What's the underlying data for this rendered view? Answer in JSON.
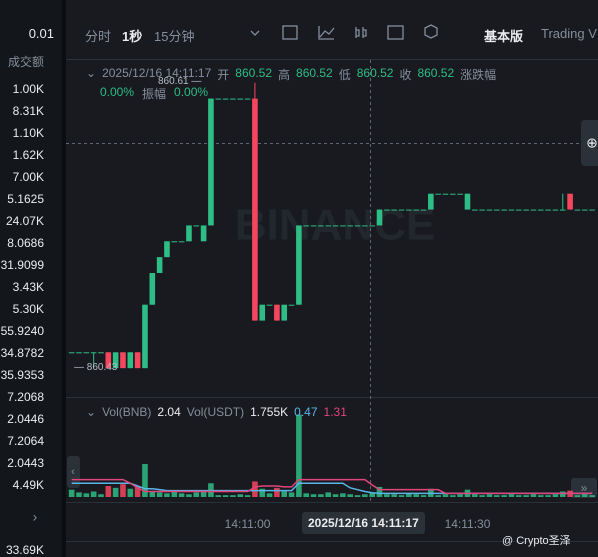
{
  "left_panel": {
    "header": "0.01",
    "column": "成交额",
    "rows": [
      "1.00K",
      "8.31K",
      "1.10K",
      "1.62K",
      "7.00K",
      "5.1625",
      "24.07K",
      "8.0686",
      "31.9099",
      "3.43K",
      "5.30K",
      "55.9240",
      "34.8782",
      "35.9353",
      "7.2068",
      "2.0446",
      "7.2064",
      "2.0443",
      "4.49K"
    ],
    "footer": "33.69K"
  },
  "toolbar": {
    "intervals": [
      "分时",
      "1秒",
      "15分钟"
    ],
    "views": [
      "基本版",
      "Trading V"
    ]
  },
  "legend": {
    "time": "2025/12/16 14:11:17",
    "open_label": "开",
    "open": "860.52",
    "high_label": "高",
    "high": "860.52",
    "low_label": "低",
    "low": "860.52",
    "close_label": "收",
    "close": "860.52",
    "change_label": "涨跌幅",
    "change": "0.00%",
    "amplitude_label": "振幅",
    "amplitude": "0.00%"
  },
  "watermark": "BINANCE",
  "chart_data": {
    "type": "candlestick",
    "max_label": "860.61",
    "min_label": "860.43",
    "ylim": [
      860.42,
      860.63
    ],
    "up_color": "#2ebd85",
    "down_color": "#f6465d",
    "categories": [
      null,
      null,
      null,
      null,
      null,
      null,
      null,
      null,
      null,
      null,
      null,
      null,
      null,
      null,
      null,
      null,
      null,
      null,
      null,
      null,
      null,
      null,
      null,
      null,
      "14:11:00",
      null,
      null,
      null,
      null,
      null,
      null,
      null,
      null,
      null,
      null,
      null,
      null,
      null,
      null,
      null,
      null,
      null,
      null,
      null,
      null,
      null,
      null,
      null,
      null,
      null,
      null,
      null,
      null,
      null,
      "14:11:30",
      null,
      null,
      null,
      null,
      null,
      null,
      null,
      null,
      null,
      null,
      null,
      null,
      null,
      null,
      null,
      null,
      null
    ],
    "crosshair_time": "2025/12/16 14:11:17",
    "candles": [
      [
        860.44,
        860.44,
        860.44,
        860.44
      ],
      [
        860.44,
        860.44,
        860.44,
        860.44
      ],
      [
        860.44,
        860.44,
        860.44,
        860.44
      ],
      [
        860.44,
        860.44,
        860.43,
        860.44
      ],
      [
        860.44,
        860.44,
        860.44,
        860.44
      ],
      [
        860.44,
        860.44,
        860.43,
        860.43
      ],
      [
        860.43,
        860.44,
        860.43,
        860.44
      ],
      [
        860.44,
        860.44,
        860.43,
        860.43
      ],
      [
        860.43,
        860.44,
        860.43,
        860.44
      ],
      [
        860.44,
        860.44,
        860.43,
        860.43
      ],
      [
        860.43,
        860.47,
        860.43,
        860.47
      ],
      [
        860.47,
        860.49,
        860.47,
        860.49
      ],
      [
        860.49,
        860.5,
        860.49,
        860.5
      ],
      [
        860.5,
        860.51,
        860.5,
        860.51
      ],
      [
        860.51,
        860.51,
        860.51,
        860.51
      ],
      [
        860.51,
        860.51,
        860.51,
        860.51
      ],
      [
        860.51,
        860.52,
        860.51,
        860.52
      ],
      [
        860.52,
        860.52,
        860.52,
        860.52
      ],
      [
        860.51,
        860.52,
        860.51,
        860.52
      ],
      [
        860.52,
        860.6,
        860.52,
        860.6
      ],
      [
        860.6,
        860.6,
        860.6,
        860.6
      ],
      [
        860.6,
        860.6,
        860.6,
        860.6
      ],
      [
        860.6,
        860.6,
        860.6,
        860.6
      ],
      [
        860.6,
        860.6,
        860.6,
        860.6
      ],
      [
        860.6,
        860.6,
        860.6,
        860.6
      ],
      [
        860.6,
        860.61,
        860.46,
        860.46
      ],
      [
        860.46,
        860.47,
        860.46,
        860.47
      ],
      [
        860.47,
        860.47,
        860.47,
        860.47
      ],
      [
        860.47,
        860.47,
        860.46,
        860.46
      ],
      [
        860.46,
        860.47,
        860.46,
        860.47
      ],
      [
        860.47,
        860.47,
        860.47,
        860.47
      ],
      [
        860.47,
        860.52,
        860.47,
        860.52
      ],
      [
        860.52,
        860.52,
        860.52,
        860.52
      ],
      [
        860.52,
        860.52,
        860.52,
        860.52
      ],
      [
        860.52,
        860.52,
        860.52,
        860.52
      ],
      [
        860.52,
        860.52,
        860.52,
        860.52
      ],
      [
        860.52,
        860.52,
        860.52,
        860.52
      ],
      [
        860.52,
        860.52,
        860.52,
        860.52
      ],
      [
        860.52,
        860.52,
        860.52,
        860.52
      ],
      [
        860.52,
        860.52,
        860.52,
        860.52
      ],
      [
        860.52,
        860.52,
        860.52,
        860.52
      ],
      [
        860.52,
        860.52,
        860.52,
        860.52
      ],
      [
        860.52,
        860.53,
        860.52,
        860.53
      ],
      [
        860.53,
        860.53,
        860.53,
        860.53
      ],
      [
        860.53,
        860.53,
        860.53,
        860.53
      ],
      [
        860.53,
        860.53,
        860.53,
        860.53
      ],
      [
        860.53,
        860.53,
        860.53,
        860.53
      ],
      [
        860.53,
        860.53,
        860.53,
        860.53
      ],
      [
        860.53,
        860.53,
        860.53,
        860.53
      ],
      [
        860.53,
        860.54,
        860.53,
        860.54
      ],
      [
        860.54,
        860.54,
        860.54,
        860.54
      ],
      [
        860.54,
        860.54,
        860.54,
        860.54
      ],
      [
        860.54,
        860.54,
        860.54,
        860.54
      ],
      [
        860.54,
        860.54,
        860.54,
        860.54
      ],
      [
        860.53,
        860.54,
        860.53,
        860.54
      ],
      [
        860.53,
        860.53,
        860.53,
        860.53
      ],
      [
        860.53,
        860.53,
        860.53,
        860.53
      ],
      [
        860.53,
        860.53,
        860.53,
        860.53
      ],
      [
        860.53,
        860.53,
        860.53,
        860.53
      ],
      [
        860.53,
        860.53,
        860.53,
        860.53
      ],
      [
        860.53,
        860.53,
        860.53,
        860.53
      ],
      [
        860.53,
        860.53,
        860.53,
        860.53
      ],
      [
        860.53,
        860.53,
        860.53,
        860.53
      ],
      [
        860.53,
        860.53,
        860.53,
        860.53
      ],
      [
        860.53,
        860.53,
        860.53,
        860.53
      ],
      [
        860.53,
        860.53,
        860.53,
        860.53
      ],
      [
        860.53,
        860.53,
        860.53,
        860.53
      ],
      [
        860.53,
        860.54,
        860.53,
        860.53
      ],
      [
        860.54,
        860.54,
        860.53,
        860.53
      ],
      [
        860.53,
        860.53,
        860.53,
        860.53
      ],
      [
        860.53,
        860.53,
        860.53,
        860.53
      ],
      [
        860.53,
        860.53,
        860.53,
        860.53
      ]
    ],
    "volume": {
      "label": "Vol(BNB)",
      "value": "2.04",
      "usdt_label": "Vol(USDT)",
      "usdt_value": "1.755K",
      "ylim": [
        0,
        9.5
      ],
      "values": [
        0.8,
        0.5,
        0.4,
        0.6,
        0.3,
        1.2,
        1.0,
        1.4,
        0.9,
        1.1,
        3.6,
        0.6,
        0.5,
        0.4,
        0.7,
        0.4,
        0.3,
        0.5,
        0.6,
        1.5,
        0.2,
        0.2,
        0.2,
        0.3,
        0.2,
        1.7,
        0.9,
        0.4,
        1.0,
        0.6,
        0.5,
        9.0,
        0.4,
        0.3,
        0.3,
        0.5,
        0.3,
        0.4,
        0.3,
        0.2,
        0.3,
        0.4,
        1.1,
        0.3,
        0.3,
        0.2,
        0.4,
        0.3,
        0.2,
        0.9,
        0.2,
        0.3,
        0.2,
        0.3,
        0.8,
        0.3,
        0.2,
        0.3,
        0.2,
        0.2,
        0.3,
        0.2,
        0.2,
        0.3,
        0.2,
        0.2,
        0.3,
        0.6,
        0.7,
        0.2,
        0.3,
        0.2
      ],
      "lines": [
        {
          "label": "0.47",
          "color": "#5bb5e6",
          "values": [
            1.5,
            1.5,
            1.5,
            1.5,
            1.5,
            1.5,
            1.5,
            1.5,
            1.5,
            1.2,
            0.9,
            0.9,
            0.8,
            0.7,
            0.7,
            0.7,
            0.7,
            0.7,
            0.7,
            0.7,
            0.7,
            0.7,
            0.7,
            0.7,
            0.7,
            0.7,
            0.7,
            0.7,
            0.7,
            0.7,
            0.7,
            1.5,
            1.5,
            1.5,
            1.5,
            1.5,
            1.5,
            1.5,
            1.0,
            0.8,
            0.6,
            0.47,
            0.4,
            0.4,
            0.4,
            0.4,
            0.4,
            0.4,
            0.4,
            0.4,
            0.4,
            0.4,
            0.4,
            0.4,
            0.4,
            0.4,
            0.4,
            0.4,
            0.4,
            0.4,
            0.4,
            0.4,
            0.4,
            0.4,
            0.4,
            0.4,
            0.4,
            0.4,
            0.4,
            0.4,
            0.4,
            0.4
          ]
        },
        {
          "label": "1.31",
          "color": "#e0457b",
          "values": [
            1.9,
            1.9,
            1.9,
            1.9,
            1.9,
            1.9,
            1.9,
            1.9,
            1.5,
            1.0,
            0.6,
            0.6,
            0.6,
            0.6,
            0.6,
            0.6,
            0.6,
            0.6,
            0.6,
            0.6,
            0.6,
            0.6,
            0.6,
            0.6,
            0.6,
            1.1,
            1.2,
            1.2,
            1.2,
            1.1,
            1.1,
            1.9,
            1.9,
            1.9,
            1.9,
            1.9,
            1.9,
            1.9,
            1.9,
            1.9,
            1.9,
            1.31,
            0.8,
            0.8,
            0.8,
            0.8,
            0.8,
            0.8,
            0.8,
            0.8,
            0.8,
            0.4,
            0.4,
            0.4,
            0.4,
            0.4,
            0.4,
            0.4,
            0.4,
            0.4,
            0.4,
            0.4,
            0.4,
            0.4,
            0.4,
            0.4,
            0.4,
            0.4,
            0.4,
            0.4,
            0.4,
            0.4
          ]
        }
      ]
    }
  },
  "footer": {
    "watermark_user": "@ Crypto圣泽"
  }
}
